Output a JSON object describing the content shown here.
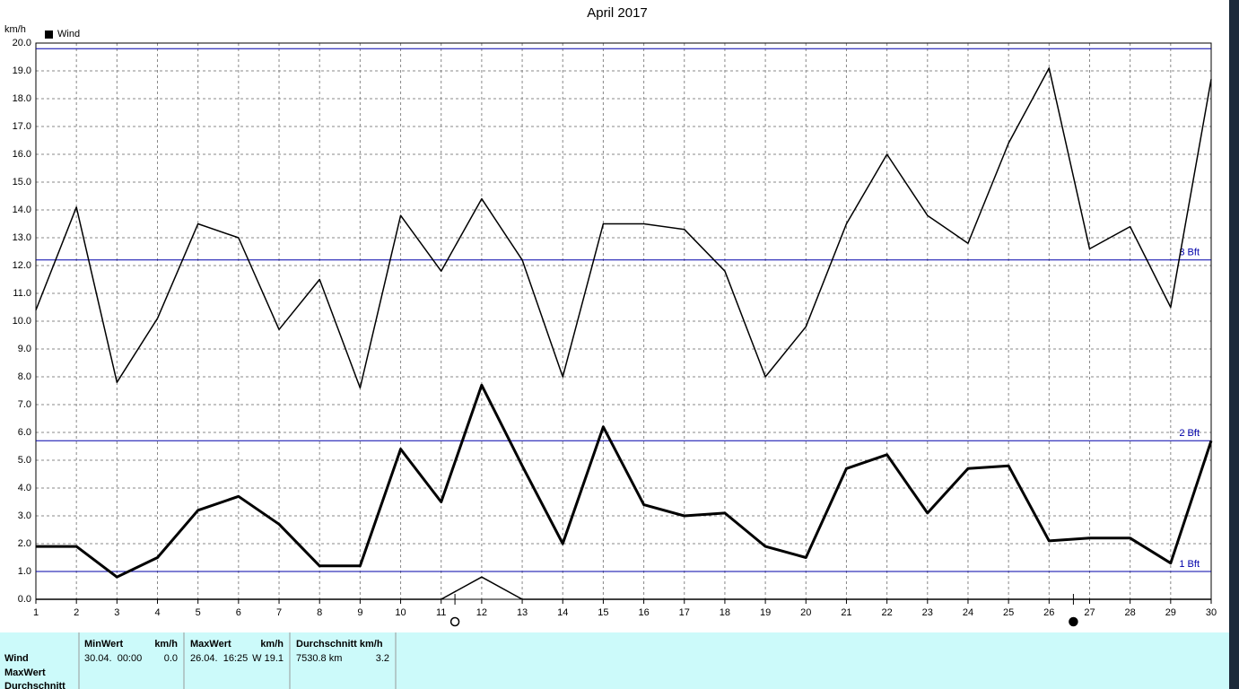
{
  "chart_data": {
    "type": "line",
    "title": "April 2017",
    "y_label": "km/h",
    "x": [
      1,
      2,
      3,
      4,
      5,
      6,
      7,
      8,
      9,
      10,
      11,
      12,
      13,
      14,
      15,
      16,
      17,
      18,
      19,
      20,
      21,
      22,
      23,
      24,
      25,
      26,
      27,
      28,
      29,
      30
    ],
    "xlim": [
      1,
      30
    ],
    "xticks": [
      1,
      2,
      3,
      4,
      5,
      6,
      7,
      8,
      9,
      10,
      11,
      12,
      13,
      14,
      15,
      16,
      17,
      18,
      19,
      20,
      21,
      22,
      23,
      24,
      25,
      26,
      27,
      28,
      29,
      30
    ],
    "ylim": [
      0,
      20
    ],
    "yticks": [
      {
        "value": 0,
        "label": "0.0"
      },
      {
        "value": 1,
        "label": "1.0"
      },
      {
        "value": 2,
        "label": "2.0"
      },
      {
        "value": 3,
        "label": "3.0"
      },
      {
        "value": 4,
        "label": "4.0"
      },
      {
        "value": 5,
        "label": "5.0"
      },
      {
        "value": 6,
        "label": "6.0"
      },
      {
        "value": 7,
        "label": "7.0"
      },
      {
        "value": 8,
        "label": "8.0"
      },
      {
        "value": 9,
        "label": "9.0"
      },
      {
        "value": 10,
        "label": "10.0"
      },
      {
        "value": 11,
        "label": "11.0"
      },
      {
        "value": 12,
        "label": "12.0"
      },
      {
        "value": 13,
        "label": "13.0"
      },
      {
        "value": 14,
        "label": "14.0"
      },
      {
        "value": 15,
        "label": "15.0"
      },
      {
        "value": 16,
        "label": "16.0"
      },
      {
        "value": 17,
        "label": "17.0"
      },
      {
        "value": 18,
        "label": "18.0"
      },
      {
        "value": 19,
        "label": "19.0"
      },
      {
        "value": 20,
        "label": "20.0"
      }
    ],
    "grid": true,
    "series": [
      {
        "name": "Wind",
        "color": "#000000",
        "width": 3,
        "values": [
          1.9,
          1.9,
          0.8,
          1.5,
          3.2,
          3.7,
          2.7,
          1.2,
          1.2,
          5.4,
          3.5,
          7.7,
          4.8,
          2.0,
          6.2,
          3.4,
          3.0,
          3.1,
          1.9,
          1.5,
          4.7,
          5.2,
          3.1,
          4.7,
          4.8,
          2.1,
          2.2,
          2.2,
          1.3,
          5.7
        ]
      },
      {
        "color": "#000000",
        "width": 1.5,
        "values": [
          10.4,
          14.1,
          7.8,
          10.1,
          13.5,
          13.0,
          9.7,
          11.5,
          7.6,
          13.8,
          11.8,
          14.4,
          12.2,
          8.0,
          13.5,
          13.5,
          13.3,
          11.8,
          8.0,
          9.8,
          13.5,
          16.0,
          13.8,
          12.8,
          16.4,
          19.1,
          12.6,
          13.4,
          10.5,
          18.7
        ]
      },
      {
        "color": "#000000",
        "width": 1.5,
        "values": [
          0,
          0,
          0,
          0,
          0,
          0,
          0,
          0,
          0,
          0,
          0,
          0.8,
          0,
          0,
          0,
          0,
          0,
          0,
          0,
          0,
          0,
          0,
          0,
          0,
          0,
          0,
          0,
          0,
          0,
          0
        ]
      }
    ],
    "reference_lines": [
      {
        "value": 1.0,
        "label": "1 Bft",
        "color": "#0000aa"
      },
      {
        "value": 5.7,
        "label": "2 Bft",
        "color": "#0000aa"
      },
      {
        "value": 12.2,
        "label": "3 Bft",
        "color": "#0000aa"
      },
      {
        "value": 19.8,
        "color": "#0000aa"
      }
    ],
    "moon_markers": [
      {
        "x": 11.34,
        "filled": false
      },
      {
        "x": 26.6,
        "filled": true
      }
    ]
  },
  "table": {
    "row_labels": [
      "Wind",
      "MaxWert",
      "Durchschnitt"
    ],
    "min_header": "MinWert",
    "min_unit": "km/h",
    "min_date": "30.04.  00:00",
    "min_value": "0.0",
    "max_header": "MaxWert",
    "max_unit": "km/h",
    "max_date": "26.04.  16:25",
    "max_value": "W 19.1",
    "avg_header": "Durchschnitt km/h",
    "avg_distance": "7530.8 km",
    "avg_value": "3.2"
  }
}
